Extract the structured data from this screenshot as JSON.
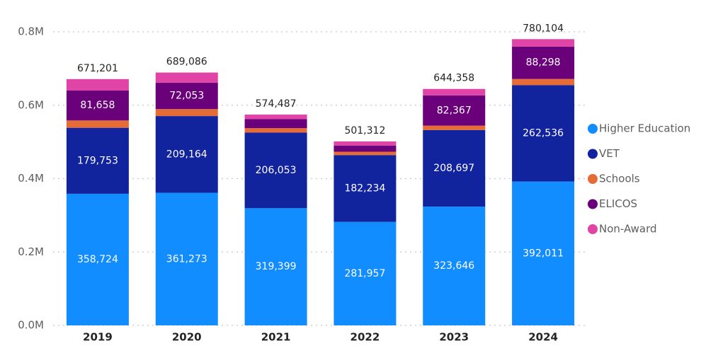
{
  "chart_data": {
    "type": "stacked_bar",
    "categories": [
      "2019",
      "2020",
      "2021",
      "2022",
      "2023",
      "2024"
    ],
    "series": [
      {
        "name": "Higher Education",
        "color": "#118DFF",
        "values": [
          358724,
          361273,
          319399,
          281957,
          323646,
          392011
        ],
        "value_labels": [
          "358,724",
          "361,273",
          "319,399",
          "281,957",
          "323,646",
          "392,011"
        ]
      },
      {
        "name": "VET",
        "color": "#12239E",
        "values": [
          179753,
          209164,
          206053,
          182234,
          208697,
          262536
        ],
        "value_labels": [
          "179,753",
          "209,164",
          "206,053",
          "182,234",
          "208,697",
          "262,536"
        ]
      },
      {
        "name": "Schools",
        "color": "#E66C37",
        "values": [
          20000,
          19000,
          12000,
          9000,
          12000,
          17000
        ]
      },
      {
        "name": "ELICOS",
        "color": "#6B007B",
        "values": [
          81658,
          72053,
          25000,
          17000,
          82367,
          88298
        ],
        "value_labels": [
          "81,658",
          "72,053",
          null,
          null,
          "82,367",
          "88,298"
        ]
      },
      {
        "name": "Non-Award",
        "color": "#E044A7",
        "values": [
          31066,
          27596,
          12035,
          11121,
          17648,
          20259
        ]
      }
    ],
    "totals": [
      671201,
      689086,
      574487,
      501312,
      644358,
      780104
    ],
    "total_labels": [
      "671,201",
      "689,086",
      "574,487",
      "501,312",
      "644,358",
      "780,104"
    ],
    "ylim": [
      0,
      800000
    ],
    "yticks": [
      {
        "value": 0,
        "label": "0.0M"
      },
      {
        "value": 200000,
        "label": "0.2M"
      },
      {
        "value": 400000,
        "label": "0.4M"
      },
      {
        "value": 600000,
        "label": "0.6M"
      },
      {
        "value": 800000,
        "label": "0.8M"
      }
    ],
    "grid": true,
    "legend": "right"
  }
}
